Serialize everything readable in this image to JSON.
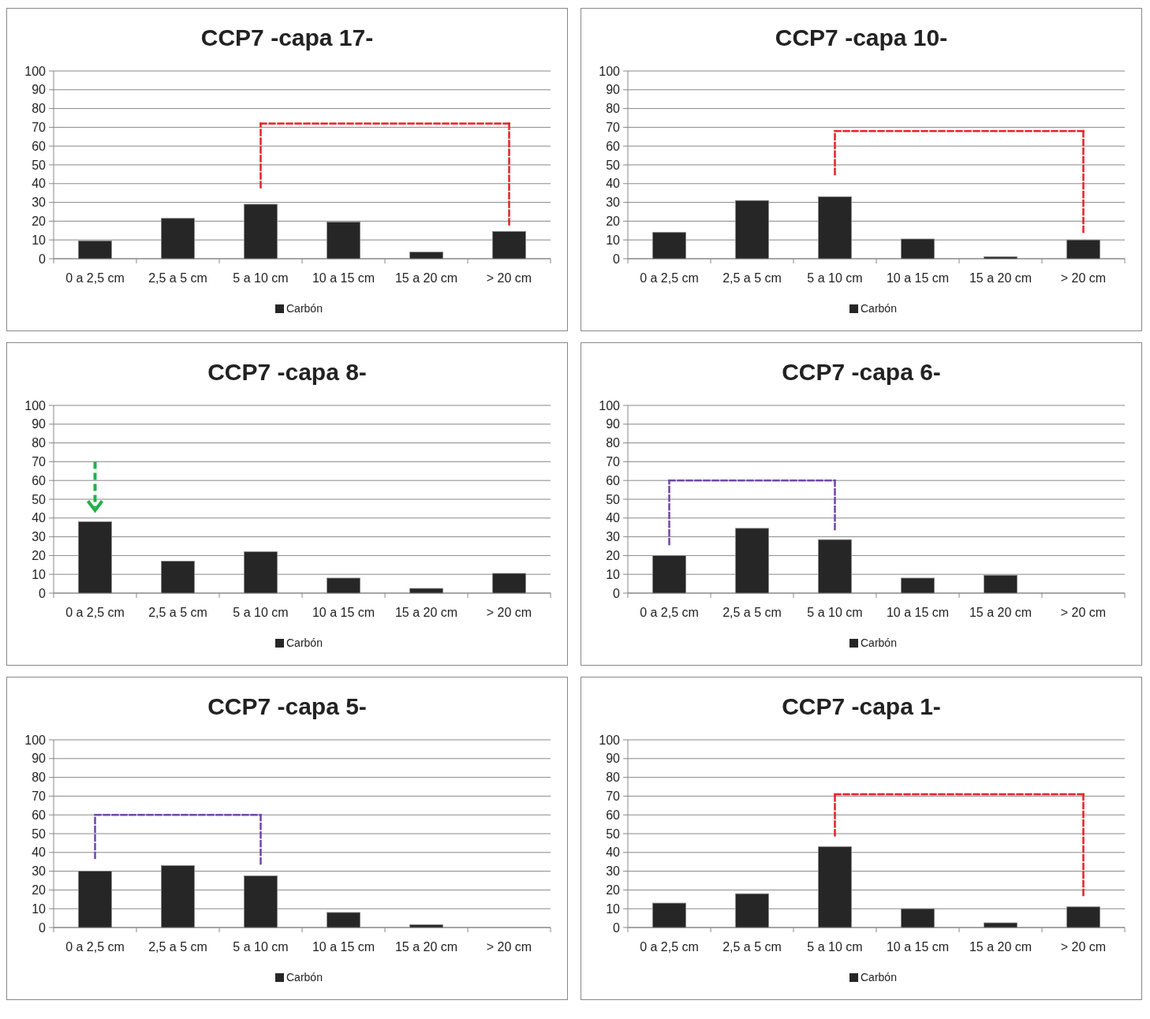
{
  "chart_data": [
    {
      "type": "bar",
      "title": "CCP7 -capa 17-",
      "categories": [
        "0 a 2,5 cm",
        "2,5 a 5 cm",
        "5 a 10 cm",
        "10 a 15 cm",
        "15 a 20 cm",
        "> 20 cm"
      ],
      "series": [
        {
          "name": "Carbón",
          "color": "#262626",
          "values": [
            9.5,
            21.5,
            29,
            19.5,
            3.5,
            14.5
          ]
        }
      ],
      "ylim": [
        0,
        100
      ],
      "yticks": [
        0,
        10,
        20,
        30,
        40,
        50,
        60,
        70,
        80,
        90,
        100
      ],
      "grid": "y",
      "legend": "bottom"
    },
    {
      "type": "bar",
      "title": "CCP7 -capa 10-",
      "categories": [
        "0 a 2,5 cm",
        "2,5 a 5 cm",
        "5 a 10 cm",
        "10 a 15 cm",
        "15 a 20 cm",
        "> 20 cm"
      ],
      "series": [
        {
          "name": "Carbón",
          "color": "#262626",
          "values": [
            14,
            31,
            33,
            10.5,
            1,
            10
          ]
        }
      ],
      "ylim": [
        0,
        100
      ],
      "yticks": [
        0,
        10,
        20,
        30,
        40,
        50,
        60,
        70,
        80,
        90,
        100
      ],
      "grid": "y",
      "legend": "bottom"
    },
    {
      "type": "bar",
      "title": "CCP7 -capa 8-",
      "categories": [
        "0 a 2,5 cm",
        "2,5 a 5 cm",
        "5 a 10 cm",
        "10 a 15 cm",
        "15 a 20 cm",
        "> 20 cm"
      ],
      "series": [
        {
          "name": "Carbón",
          "color": "#262626",
          "values": [
            38,
            17,
            22,
            8,
            2.5,
            10.5
          ]
        }
      ],
      "ylim": [
        0,
        100
      ],
      "yticks": [
        0,
        10,
        20,
        30,
        40,
        50,
        60,
        70,
        80,
        90,
        100
      ],
      "grid": "y",
      "legend": "bottom"
    },
    {
      "type": "bar",
      "title": "CCP7 -capa 6-",
      "categories": [
        "0 a 2,5 cm",
        "2,5 a 5 cm",
        "5 a 10 cm",
        "10 a 15 cm",
        "15 a 20 cm",
        "> 20 cm"
      ],
      "series": [
        {
          "name": "Carbón",
          "color": "#262626",
          "values": [
            20,
            34.5,
            28.5,
            8,
            9.5,
            0
          ]
        }
      ],
      "ylim": [
        0,
        100
      ],
      "yticks": [
        0,
        10,
        20,
        30,
        40,
        50,
        60,
        70,
        80,
        90,
        100
      ],
      "grid": "y",
      "legend": "bottom"
    },
    {
      "type": "bar",
      "title": "CCP7 -capa 5-",
      "categories": [
        "0 a 2,5 cm",
        "2,5 a 5 cm",
        "5 a 10 cm",
        "10 a 15 cm",
        "15 a 20 cm",
        "> 20 cm"
      ],
      "series": [
        {
          "name": "Carbón",
          "color": "#262626",
          "values": [
            30,
            33,
            27.5,
            8,
            1.5,
            0
          ]
        }
      ],
      "ylim": [
        0,
        100
      ],
      "yticks": [
        0,
        10,
        20,
        30,
        40,
        50,
        60,
        70,
        80,
        90,
        100
      ],
      "grid": "y",
      "legend": "bottom"
    },
    {
      "type": "bar",
      "title": "CCP7 -capa 1-",
      "categories": [
        "0 a 2,5 cm",
        "2,5 a 5 cm",
        "5 a 10 cm",
        "10 a 15 cm",
        "15 a 20 cm",
        "> 20 cm"
      ],
      "series": [
        {
          "name": "Carbón",
          "color": "#262626",
          "values": [
            13,
            18,
            43,
            10,
            2.5,
            11
          ]
        }
      ],
      "ylim": [
        0,
        100
      ],
      "yticks": [
        0,
        10,
        20,
        30,
        40,
        50,
        60,
        70,
        80,
        90,
        100
      ],
      "grid": "y",
      "legend": "bottom"
    }
  ]
}
